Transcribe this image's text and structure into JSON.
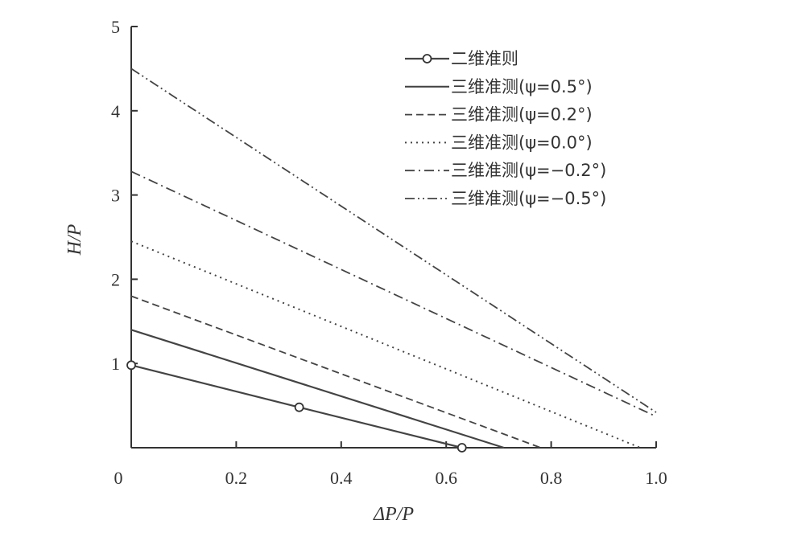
{
  "chart_data": {
    "type": "line",
    "xlabel": "ΔP/P",
    "ylabel": "H/P",
    "xlim": [
      0,
      1.0
    ],
    "ylim": [
      0,
      5
    ],
    "x_ticks": [
      "0",
      "0.2",
      "0.4",
      "0.6",
      "0.8",
      "1.0"
    ],
    "x_tick_values": [
      0,
      0.2,
      0.4,
      0.6,
      0.8,
      1.0
    ],
    "y_ticks": [
      "1",
      "2",
      "3",
      "4",
      "5"
    ],
    "y_tick_values": [
      1,
      2,
      3,
      4,
      5
    ],
    "grid": false,
    "legend_position": "top-right",
    "series": [
      {
        "name": "二维准则",
        "style": "solid-marker",
        "x": [
          0,
          0.32,
          0.63
        ],
        "y": [
          0.98,
          0.48,
          0
        ]
      },
      {
        "name": "三维准测(ψ=0.5°)",
        "style": "solid",
        "x": [
          0,
          0.71
        ],
        "y": [
          1.4,
          0
        ]
      },
      {
        "name": "三维准测(ψ=0.2°)",
        "style": "dashed",
        "x": [
          0,
          0.78
        ],
        "y": [
          1.8,
          0
        ]
      },
      {
        "name": "三维准测(ψ=0.0°)",
        "style": "dotted",
        "x": [
          0,
          0.97
        ],
        "y": [
          2.45,
          0
        ]
      },
      {
        "name": "三维准测(ψ=−0.2°)",
        "style": "dashdot",
        "x": [
          0,
          1.0
        ],
        "y": [
          3.28,
          0.37
        ]
      },
      {
        "name": "三维准测(ψ=−0.5°)",
        "style": "dashdotdot",
        "x": [
          0,
          1.0
        ],
        "y": [
          4.5,
          0.42
        ]
      }
    ]
  }
}
